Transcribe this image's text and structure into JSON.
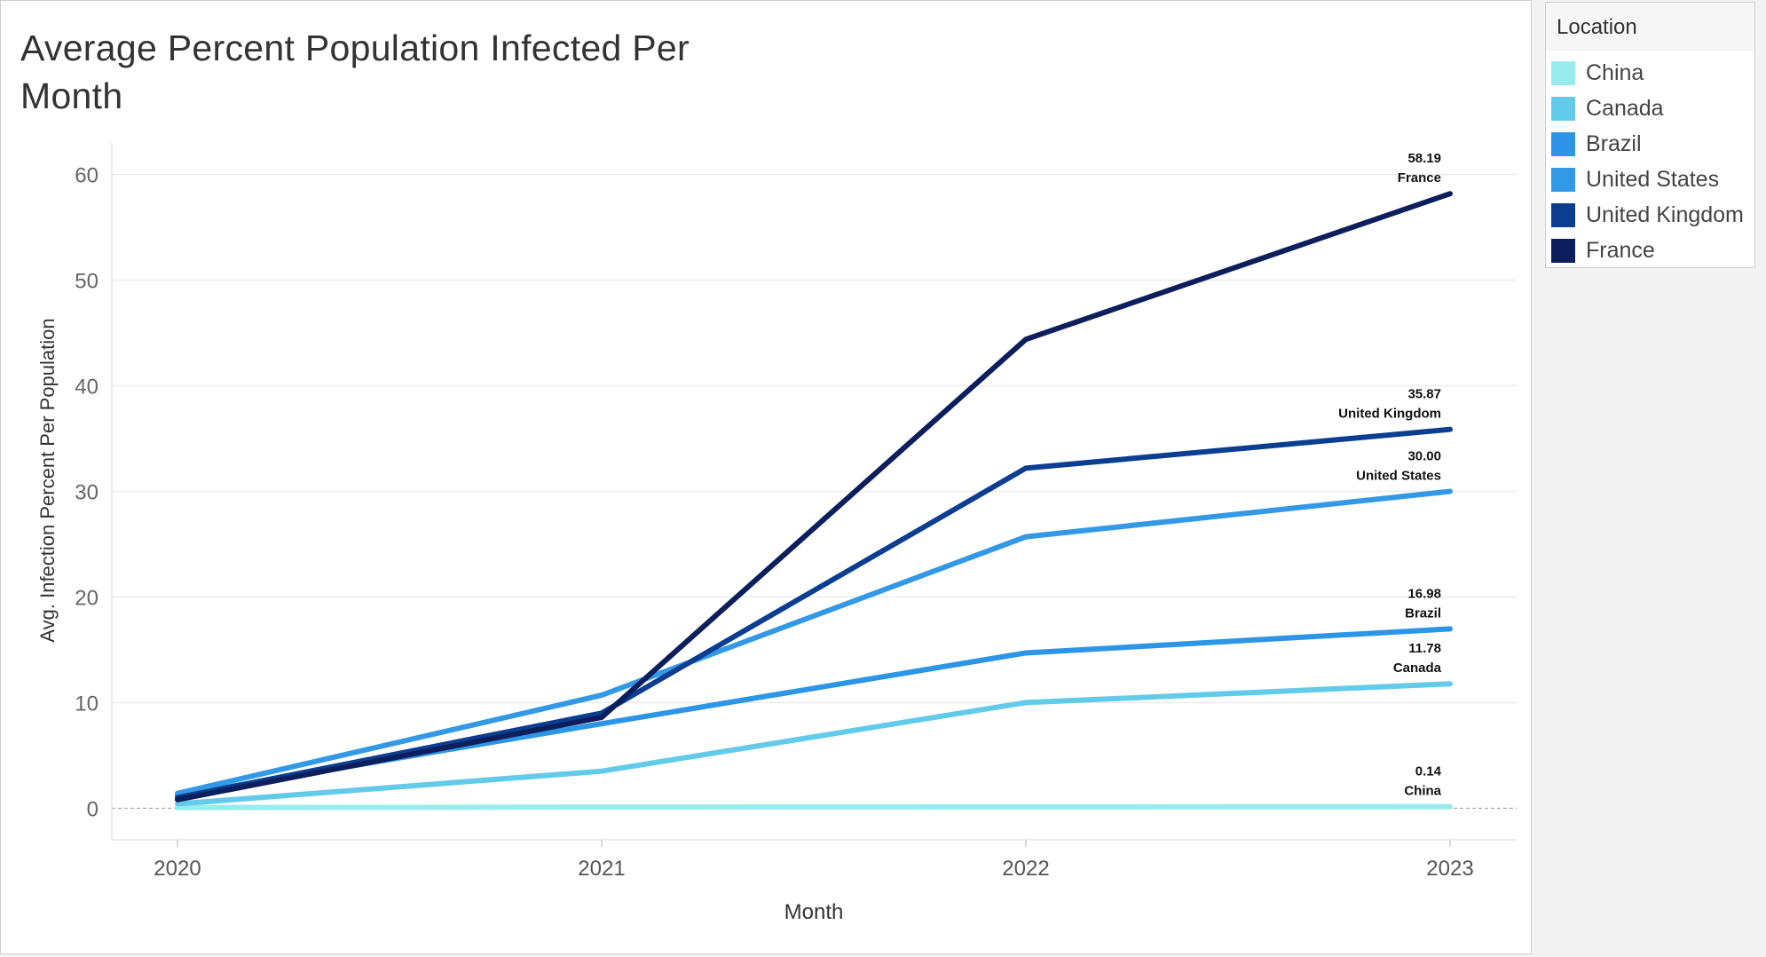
{
  "title": "Average Percent Population Infected Per Month",
  "legend": {
    "title": "Location",
    "items": [
      {
        "label": "China",
        "color": "#98eced"
      },
      {
        "label": "Canada",
        "color": "#63cbea"
      },
      {
        "label": "Brazil",
        "color": "#2d95e6"
      },
      {
        "label": "United States",
        "color": "#3399e6"
      },
      {
        "label": "United Kingdom",
        "color": "#0b3e91"
      },
      {
        "label": "France",
        "color": "#0c1f5c"
      }
    ]
  },
  "chart_data": {
    "type": "line",
    "title": "Average Percent Population Infected Per Month",
    "xlabel": "Month",
    "ylabel": "Avg. Infection Percent Per Population",
    "x": [
      "2020",
      "2021",
      "2022",
      "2023"
    ],
    "ylim": [
      -3,
      63
    ],
    "yticks": [
      0,
      10,
      20,
      30,
      40,
      50,
      60
    ],
    "grid": true,
    "legend_position": "right",
    "series": [
      {
        "name": "China",
        "color": "#98eced",
        "values": [
          0.05,
          0.1,
          0.12,
          0.14
        ],
        "end_label": "0.14",
        "end_name": "China"
      },
      {
        "name": "Canada",
        "color": "#63cbea",
        "values": [
          0.4,
          3.5,
          10.0,
          11.78
        ],
        "end_label": "11.78",
        "end_name": "Canada"
      },
      {
        "name": "Brazil",
        "color": "#2d95e6",
        "values": [
          1.2,
          8.0,
          14.7,
          16.98
        ],
        "end_label": "16.98",
        "end_name": "Brazil"
      },
      {
        "name": "United States",
        "color": "#3399e6",
        "values": [
          1.4,
          10.7,
          25.7,
          30.0
        ],
        "end_label": "30.00",
        "end_name": "United States"
      },
      {
        "name": "United Kingdom",
        "color": "#0b3e91",
        "values": [
          1.0,
          9.0,
          32.2,
          35.87
        ],
        "end_label": "35.87",
        "end_name": "United Kingdom"
      },
      {
        "name": "France",
        "color": "#0c1f5c",
        "values": [
          0.8,
          8.6,
          44.4,
          58.19
        ],
        "end_label": "58.19",
        "end_name": "France"
      }
    ]
  }
}
